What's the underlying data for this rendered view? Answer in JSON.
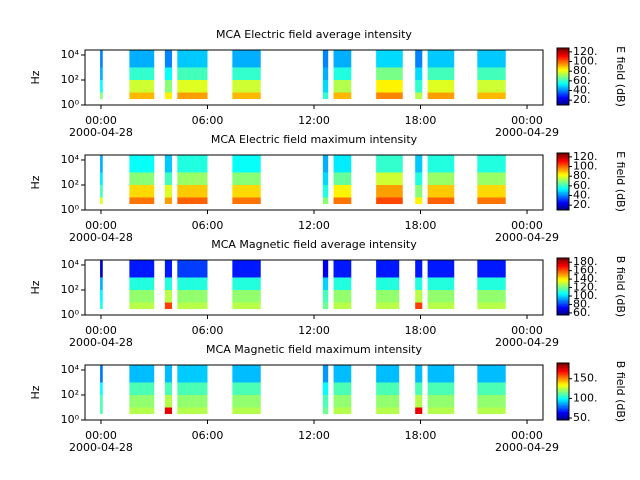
{
  "chart_data": [
    {
      "type": "spectrogram",
      "title": "MCA  Electric field average intensity",
      "ylabel": "Hz",
      "colorbar_label": "E field (dB)",
      "log_y": true,
      "xlim": [
        -0.9,
        24.9
      ],
      "xticks": [
        {
          "value": 0,
          "label": "00:00"
        },
        {
          "value": 6,
          "label": "06:00"
        },
        {
          "value": 12,
          "label": "12:00"
        },
        {
          "value": 18,
          "label": "18:00"
        },
        {
          "value": 24,
          "label": "00:00"
        }
      ],
      "date_labels": [
        {
          "value": 0,
          "label": "2000-04-28"
        },
        {
          "value": 24,
          "label": "2000-04-29"
        }
      ],
      "ylim": [
        1,
        25000
      ],
      "yticks": [
        {
          "value": 1,
          "label": "10⁰"
        },
        {
          "value": 100,
          "label": "10²"
        },
        {
          "value": 10000,
          "label": "10⁴"
        }
      ],
      "bands": [
        3,
        10,
        100,
        1000,
        25000
      ],
      "segments": [
        [
          -0.05,
          0.1
        ],
        [
          1.6,
          3.0
        ],
        [
          3.6,
          4.0
        ],
        [
          4.3,
          6.0
        ],
        [
          7.4,
          9.0
        ],
        [
          12.5,
          12.8
        ],
        [
          13.1,
          14.1
        ],
        [
          15.5,
          17.0
        ],
        [
          17.7,
          18.1
        ],
        [
          18.4,
          19.9
        ],
        [
          21.2,
          22.8
        ]
      ],
      "z": [
        [
          70,
          55,
          45,
          40
        ],
        [
          92,
          78,
          60,
          45
        ],
        [
          85,
          70,
          55,
          40
        ],
        [
          95,
          80,
          62,
          48
        ],
        [
          92,
          78,
          60,
          45
        ],
        [
          60,
          50,
          45,
          40
        ],
        [
          92,
          75,
          58,
          45
        ],
        [
          98,
          85,
          68,
          50
        ],
        [
          75,
          60,
          50,
          40
        ],
        [
          95,
          80,
          62,
          48
        ],
        [
          92,
          78,
          62,
          48
        ]
      ],
      "zlim": [
        10,
        128
      ],
      "zticks": [
        {
          "value": 20,
          "label": "20."
        },
        {
          "value": 40,
          "label": "40."
        },
        {
          "value": 60,
          "label": "60."
        },
        {
          "value": 80,
          "label": "80."
        },
        {
          "value": 100,
          "label": "100."
        },
        {
          "value": 120,
          "label": "120."
        }
      ]
    },
    {
      "type": "spectrogram",
      "title": "MCA  Electric field maximum intensity",
      "ylabel": "Hz",
      "colorbar_label": "E field (dB)",
      "log_y": true,
      "xlim": [
        -0.9,
        24.9
      ],
      "xticks": [
        {
          "value": 0,
          "label": "00:00"
        },
        {
          "value": 6,
          "label": "06:00"
        },
        {
          "value": 12,
          "label": "12:00"
        },
        {
          "value": 18,
          "label": "18:00"
        },
        {
          "value": 24,
          "label": "00:00"
        }
      ],
      "date_labels": [
        {
          "value": 0,
          "label": "2000-04-28"
        },
        {
          "value": 24,
          "label": "2000-04-29"
        }
      ],
      "ylim": [
        1,
        25000
      ],
      "yticks": [
        {
          "value": 1,
          "label": "10⁰"
        },
        {
          "value": 100,
          "label": "10²"
        },
        {
          "value": 10000,
          "label": "10⁴"
        }
      ],
      "bands": [
        3,
        10,
        100,
        1000,
        25000
      ],
      "segments": [
        [
          -0.05,
          0.1
        ],
        [
          1.6,
          3.0
        ],
        [
          3.6,
          4.0
        ],
        [
          4.3,
          6.0
        ],
        [
          7.4,
          9.0
        ],
        [
          12.5,
          12.8
        ],
        [
          13.1,
          14.1
        ],
        [
          15.5,
          17.0
        ],
        [
          17.7,
          18.1
        ],
        [
          18.4,
          19.9
        ],
        [
          21.2,
          22.8
        ]
      ],
      "z": [
        [
          80,
          62,
          52,
          45
        ],
        [
          100,
          88,
          70,
          55
        ],
        [
          95,
          80,
          62,
          48
        ],
        [
          102,
          90,
          72,
          58
        ],
        [
          100,
          88,
          70,
          55
        ],
        [
          70,
          58,
          50,
          45
        ],
        [
          100,
          85,
          66,
          52
        ],
        [
          105,
          95,
          78,
          60
        ],
        [
          85,
          70,
          58,
          48
        ],
        [
          102,
          90,
          72,
          58
        ],
        [
          100,
          88,
          72,
          58
        ]
      ],
      "zlim": [
        10,
        128
      ],
      "zticks": [
        {
          "value": 20,
          "label": "20."
        },
        {
          "value": 40,
          "label": "40."
        },
        {
          "value": 60,
          "label": "60."
        },
        {
          "value": 80,
          "label": "80."
        },
        {
          "value": 100,
          "label": "100."
        },
        {
          "value": 120,
          "label": "120."
        }
      ]
    },
    {
      "type": "spectrogram",
      "title": "MCA  Magnetic field average intensity",
      "ylabel": "Hz",
      "colorbar_label": "B field (dB)",
      "log_y": true,
      "xlim": [
        -0.9,
        24.9
      ],
      "xticks": [
        {
          "value": 0,
          "label": "00:00"
        },
        {
          "value": 6,
          "label": "06:00"
        },
        {
          "value": 12,
          "label": "12:00"
        },
        {
          "value": 18,
          "label": "18:00"
        },
        {
          "value": 24,
          "label": "00:00"
        }
      ],
      "date_labels": [
        {
          "value": 0,
          "label": "2000-04-28"
        },
        {
          "value": 24,
          "label": "2000-04-29"
        }
      ],
      "ylim": [
        1,
        25000
      ],
      "yticks": [
        {
          "value": 1,
          "label": "10⁰"
        },
        {
          "value": 100,
          "label": "10²"
        },
        {
          "value": 10000,
          "label": "10⁴"
        }
      ],
      "bands": [
        3,
        10,
        100,
        1000,
        25000
      ],
      "segments": [
        [
          -0.05,
          0.1
        ],
        [
          1.6,
          3.0
        ],
        [
          3.6,
          4.0
        ],
        [
          4.3,
          6.0
        ],
        [
          7.4,
          9.0
        ],
        [
          12.5,
          12.8
        ],
        [
          13.1,
          14.1
        ],
        [
          15.5,
          16.8
        ],
        [
          17.7,
          18.1
        ],
        [
          18.4,
          19.9
        ],
        [
          21.2,
          22.8
        ]
      ],
      "z": [
        [
          110,
          105,
          95,
          65
        ],
        [
          130,
          125,
          110,
          75
        ],
        [
          165,
          130,
          110,
          75
        ],
        [
          130,
          125,
          110,
          80
        ],
        [
          130,
          125,
          110,
          75
        ],
        [
          120,
          115,
          100,
          70
        ],
        [
          130,
          125,
          110,
          75
        ],
        [
          130,
          125,
          110,
          75
        ],
        [
          165,
          130,
          110,
          75
        ],
        [
          130,
          125,
          110,
          75
        ],
        [
          130,
          125,
          110,
          75
        ]
      ],
      "zlim": [
        55,
        190
      ],
      "zticks": [
        {
          "value": 60,
          "label": "60."
        },
        {
          "value": 80,
          "label": "80."
        },
        {
          "value": 100,
          "label": "100."
        },
        {
          "value": 120,
          "label": "120."
        },
        {
          "value": 140,
          "label": "140."
        },
        {
          "value": 160,
          "label": "160."
        },
        {
          "value": 180,
          "label": "180."
        }
      ]
    },
    {
      "type": "spectrogram",
      "title": "MCA  Magnetic field maximum intensity",
      "ylabel": "Hz",
      "colorbar_label": "B field (dB)",
      "log_y": true,
      "xlim": [
        -0.9,
        24.9
      ],
      "xticks": [
        {
          "value": 0,
          "label": "00:00"
        },
        {
          "value": 6,
          "label": "06:00"
        },
        {
          "value": 12,
          "label": "12:00"
        },
        {
          "value": 18,
          "label": "18:00"
        },
        {
          "value": 24,
          "label": "00:00"
        }
      ],
      "date_labels": [
        {
          "value": 0,
          "label": "2000-04-28"
        },
        {
          "value": 24,
          "label": "2000-04-29"
        }
      ],
      "ylim": [
        1,
        25000
      ],
      "yticks": [
        {
          "value": 1,
          "label": "10⁰"
        },
        {
          "value": 100,
          "label": "10²"
        },
        {
          "value": 10000,
          "label": "10⁴"
        }
      ],
      "bands": [
        3,
        10,
        100,
        1000,
        25000
      ],
      "segments": [
        [
          -0.05,
          0.1
        ],
        [
          1.6,
          3.0
        ],
        [
          3.6,
          4.0
        ],
        [
          4.3,
          6.0
        ],
        [
          7.4,
          9.0
        ],
        [
          12.5,
          12.8
        ],
        [
          13.1,
          14.1
        ],
        [
          15.5,
          16.8
        ],
        [
          17.7,
          18.1
        ],
        [
          18.4,
          19.9
        ],
        [
          21.2,
          22.8
        ]
      ],
      "z": [
        [
          110,
          110,
          100,
          80
        ],
        [
          125,
          120,
          110,
          90
        ],
        [
          175,
          125,
          110,
          90
        ],
        [
          125,
          120,
          110,
          92
        ],
        [
          125,
          120,
          110,
          90
        ],
        [
          115,
          110,
          100,
          85
        ],
        [
          125,
          120,
          110,
          90
        ],
        [
          125,
          120,
          110,
          90
        ],
        [
          175,
          125,
          110,
          90
        ],
        [
          125,
          120,
          110,
          90
        ],
        [
          125,
          120,
          110,
          90
        ]
      ],
      "zlim": [
        45,
        190
      ],
      "zticks": [
        {
          "value": 50,
          "label": "50."
        },
        {
          "value": 100,
          "label": "100."
        },
        {
          "value": 150,
          "label": "150."
        }
      ]
    }
  ]
}
